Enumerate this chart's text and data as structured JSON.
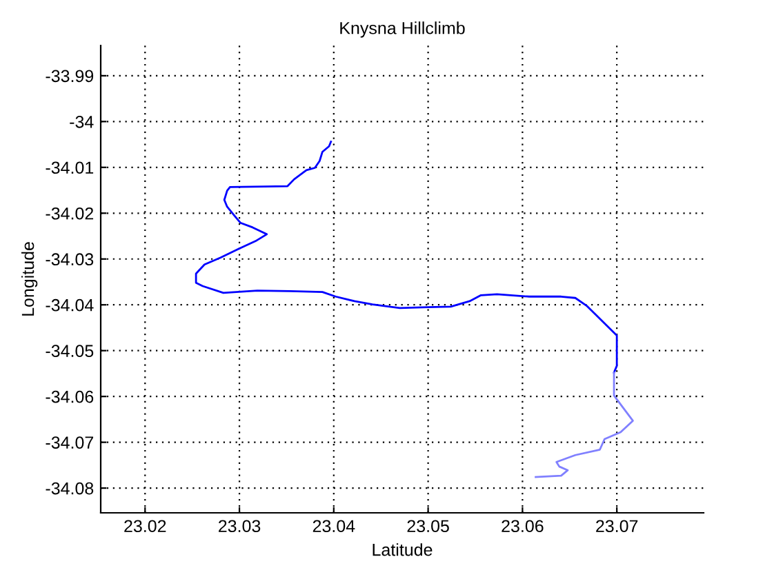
{
  "chart_data": {
    "type": "line",
    "title": "Knysna Hillclimb",
    "xlabel": "Latitude",
    "ylabel": "Longitude",
    "xlim": [
      23.0153,
      23.0792
    ],
    "ylim": [
      -34.0854,
      -33.9834
    ],
    "xticks": [
      23.02,
      23.03,
      23.04,
      23.05,
      23.06,
      23.07
    ],
    "yticks": [
      -34.08,
      -34.07,
      -34.06,
      -34.05,
      -34.04,
      -34.03,
      -34.02,
      -34.01,
      -34,
      -33.99
    ],
    "grid": true,
    "marker": "none",
    "line_style": "solid",
    "series": [
      {
        "color": "#0000ff",
        "x": [
          23.0397,
          23.0395,
          23.0388,
          23.0385,
          23.038,
          23.0371,
          23.0358,
          23.0351,
          23.029,
          23.0287,
          23.0284,
          23.0287,
          23.0295,
          23.0301,
          23.0314,
          23.0329,
          23.0317,
          23.03,
          23.028,
          23.0263,
          23.0254,
          23.0254,
          23.0261,
          23.0283,
          23.0319,
          23.0354,
          23.0388,
          23.0402,
          23.0422,
          23.0441,
          23.047,
          23.05,
          23.0524,
          23.0544,
          23.0556,
          23.0573,
          23.0607,
          23.0641,
          23.0656,
          23.0668,
          23.07,
          23.07,
          23.0697
        ],
        "values": [
          -34.0044,
          -34.0054,
          -34.0066,
          -34.0086,
          -34.0101,
          -34.0106,
          -34.0126,
          -34.0141,
          -34.0143,
          -34.0151,
          -34.0171,
          -34.0186,
          -34.0206,
          -34.0221,
          -34.0231,
          -34.0246,
          -34.0261,
          -34.0277,
          -34.0297,
          -34.0312,
          -34.0332,
          -34.0352,
          -34.0359,
          -34.0374,
          -34.0369,
          -34.037,
          -34.0372,
          -34.0382,
          -34.0392,
          -34.0399,
          -34.0407,
          -34.0405,
          -34.0404,
          -34.0392,
          -34.0379,
          -34.0377,
          -34.0382,
          -34.0382,
          -34.0385,
          -34.0402,
          -34.0467,
          -34.0533,
          -34.0548
        ]
      },
      {
        "color": "#8080ff",
        "x": [
          23.0697,
          23.0697,
          23.0717,
          23.0704,
          23.0687,
          23.0682,
          23.0656,
          23.0636,
          23.0639,
          23.0648,
          23.0641,
          23.0614
        ],
        "values": [
          -34.0548,
          -34.0598,
          -34.0653,
          -34.0678,
          -34.0693,
          -34.0716,
          -34.0728,
          -34.0743,
          -34.0753,
          -34.0761,
          -34.0773,
          -34.0776
        ]
      }
    ]
  }
}
